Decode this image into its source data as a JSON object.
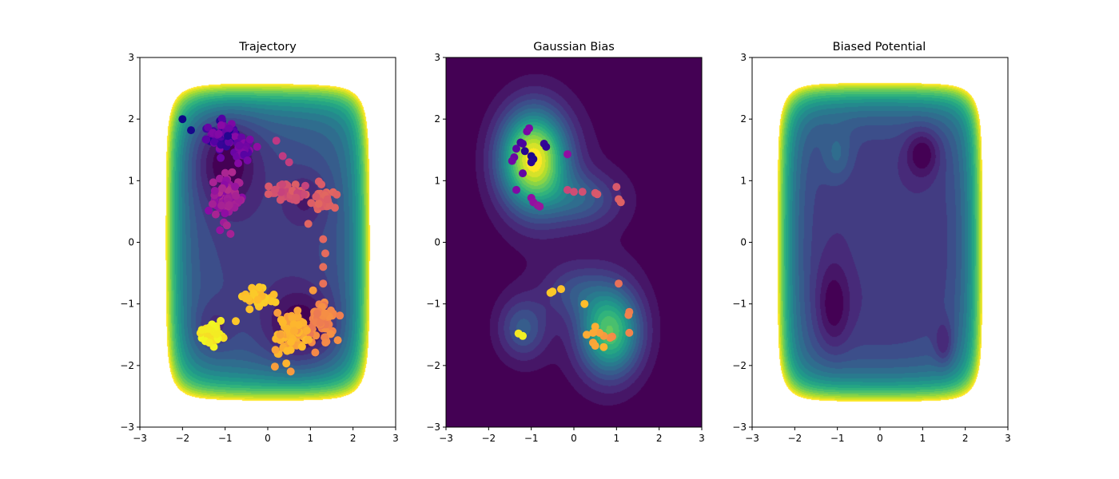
{
  "chart_data": [
    {
      "type": "contour-scatter",
      "title": "Trajectory",
      "xlim": [
        -3,
        3
      ],
      "ylim": [
        -3,
        3
      ],
      "xticks": [
        "−3",
        "−2",
        "−1",
        "0",
        "1",
        "2",
        "3"
      ],
      "yticks": [
        "−3",
        "−2",
        "−1",
        "0",
        "1",
        "2",
        "3"
      ],
      "colormap_background": "viridis",
      "colormap_points": "plasma",
      "field": "potential",
      "clusters": [
        {
          "cx": -1.05,
          "cy": 1.72,
          "sx": 0.28,
          "sy": 0.22,
          "n": 70,
          "tmin": 0.02,
          "tmax": 0.28
        },
        {
          "cx": -0.55,
          "cy": 1.5,
          "sx": 0.15,
          "sy": 0.22,
          "n": 25,
          "tmin": 0.15,
          "tmax": 0.3
        },
        {
          "cx": -0.95,
          "cy": 0.7,
          "sx": 0.28,
          "sy": 0.28,
          "n": 70,
          "tmin": 0.28,
          "tmax": 0.42
        },
        {
          "cx": 0.5,
          "cy": 0.8,
          "sx": 0.35,
          "sy": 0.12,
          "n": 45,
          "tmin": 0.48,
          "tmax": 0.58
        },
        {
          "cx": 1.3,
          "cy": 0.7,
          "sx": 0.2,
          "sy": 0.15,
          "n": 30,
          "tmin": 0.56,
          "tmax": 0.62
        },
        {
          "cx": 1.25,
          "cy": -1.35,
          "sx": 0.25,
          "sy": 0.3,
          "n": 60,
          "tmin": 0.66,
          "tmax": 0.74
        },
        {
          "cx": 0.55,
          "cy": -1.45,
          "sx": 0.32,
          "sy": 0.35,
          "n": 80,
          "tmin": 0.76,
          "tmax": 0.86
        },
        {
          "cx": -0.25,
          "cy": -0.88,
          "sx": 0.28,
          "sy": 0.14,
          "n": 40,
          "tmin": 0.84,
          "tmax": 0.9
        },
        {
          "cx": -1.35,
          "cy": -1.48,
          "sx": 0.2,
          "sy": 0.12,
          "n": 45,
          "tmin": 0.92,
          "tmax": 1.0
        }
      ],
      "points": [
        {
          "x": -2.0,
          "y": 2.0,
          "t": 0.0
        },
        {
          "x": -1.8,
          "y": 1.82,
          "t": 0.02
        },
        {
          "x": -0.25,
          "y": 1.55,
          "t": 0.3
        },
        {
          "x": 0.2,
          "y": 1.65,
          "t": 0.45
        },
        {
          "x": 0.35,
          "y": 1.4,
          "t": 0.46
        },
        {
          "x": 0.5,
          "y": 1.3,
          "t": 0.47
        },
        {
          "x": 0.95,
          "y": 0.3,
          "t": 0.6
        },
        {
          "x": 1.3,
          "y": 0.05,
          "t": 0.61
        },
        {
          "x": 1.35,
          "y": -0.18,
          "t": 0.62
        },
        {
          "x": 1.3,
          "y": -0.4,
          "t": 0.63
        },
        {
          "x": 1.3,
          "y": -0.67,
          "t": 0.64
        },
        {
          "x": -0.75,
          "y": -1.28,
          "t": 0.88
        }
      ]
    },
    {
      "type": "contour-scatter",
      "title": "Gaussian Bias",
      "xlim": [
        -3,
        3
      ],
      "ylim": [
        -3,
        3
      ],
      "xticks": [
        "−3",
        "−2",
        "−1",
        "0",
        "1",
        "2",
        "3"
      ],
      "yticks": [
        "−3",
        "−2",
        "−1",
        "0",
        "1",
        "2",
        "3"
      ],
      "colormap_background": "viridis",
      "colormap_points": "plasma",
      "field": "bias",
      "points": [
        {
          "x": -1.25,
          "y": 1.62,
          "t": 0.1
        },
        {
          "x": -1.2,
          "y": 1.6,
          "t": 0.12
        },
        {
          "x": -1.35,
          "y": 1.52,
          "t": 0.16
        },
        {
          "x": -1.4,
          "y": 1.38,
          "t": 0.2
        },
        {
          "x": -1.45,
          "y": 1.32,
          "t": 0.22
        },
        {
          "x": -1.15,
          "y": 1.48,
          "t": 0.05
        },
        {
          "x": -1.0,
          "y": 1.4,
          "t": 0.03
        },
        {
          "x": -0.95,
          "y": 1.35,
          "t": 0.04
        },
        {
          "x": -1.0,
          "y": 1.3,
          "t": 0.06
        },
        {
          "x": -0.7,
          "y": 1.6,
          "t": 0.08
        },
        {
          "x": -0.65,
          "y": 1.55,
          "t": 0.07
        },
        {
          "x": -1.1,
          "y": 1.8,
          "t": 0.24
        },
        {
          "x": -1.05,
          "y": 1.85,
          "t": 0.25
        },
        {
          "x": -0.15,
          "y": 1.43,
          "t": 0.3
        },
        {
          "x": -1.2,
          "y": 1.12,
          "t": 0.18
        },
        {
          "x": -1.35,
          "y": 0.85,
          "t": 0.26
        },
        {
          "x": -1.0,
          "y": 0.72,
          "t": 0.3
        },
        {
          "x": -0.95,
          "y": 0.65,
          "t": 0.31
        },
        {
          "x": -0.85,
          "y": 0.6,
          "t": 0.32
        },
        {
          "x": -0.8,
          "y": 0.58,
          "t": 0.33
        },
        {
          "x": -0.15,
          "y": 0.85,
          "t": 0.5
        },
        {
          "x": 0.0,
          "y": 0.82,
          "t": 0.52
        },
        {
          "x": 0.2,
          "y": 0.82,
          "t": 0.53
        },
        {
          "x": 0.5,
          "y": 0.8,
          "t": 0.55
        },
        {
          "x": 0.55,
          "y": 0.78,
          "t": 0.56
        },
        {
          "x": 1.0,
          "y": 0.9,
          "t": 0.56
        },
        {
          "x": 1.05,
          "y": 0.7,
          "t": 0.58
        },
        {
          "x": 1.1,
          "y": 0.65,
          "t": 0.59
        },
        {
          "x": 1.05,
          "y": -0.67,
          "t": 0.64
        },
        {
          "x": 1.3,
          "y": -1.13,
          "t": 0.68
        },
        {
          "x": 1.28,
          "y": -1.18,
          "t": 0.69
        },
        {
          "x": 1.3,
          "y": -1.47,
          "t": 0.7
        },
        {
          "x": 0.9,
          "y": -1.53,
          "t": 0.72
        },
        {
          "x": 0.85,
          "y": -1.55,
          "t": 0.73
        },
        {
          "x": 0.7,
          "y": -1.52,
          "t": 0.76
        },
        {
          "x": 0.6,
          "y": -1.47,
          "t": 0.78
        },
        {
          "x": 0.45,
          "y": -1.47,
          "t": 0.8
        },
        {
          "x": 0.5,
          "y": -1.37,
          "t": 0.82
        },
        {
          "x": 0.3,
          "y": -1.5,
          "t": 0.81
        },
        {
          "x": 0.45,
          "y": -1.63,
          "t": 0.79
        },
        {
          "x": 0.5,
          "y": -1.68,
          "t": 0.8
        },
        {
          "x": 0.7,
          "y": -1.7,
          "t": 0.83
        },
        {
          "x": 0.25,
          "y": -1.0,
          "t": 0.86
        },
        {
          "x": -0.3,
          "y": -0.76,
          "t": 0.87
        },
        {
          "x": -0.55,
          "y": -0.82,
          "t": 0.88
        },
        {
          "x": -0.5,
          "y": -0.8,
          "t": 0.885
        },
        {
          "x": -1.3,
          "y": -1.48,
          "t": 0.96
        },
        {
          "x": -1.2,
          "y": -1.52,
          "t": 0.98
        }
      ]
    },
    {
      "type": "contour",
      "title": "Biased Potential",
      "xlim": [
        -3,
        3
      ],
      "ylim": [
        -3,
        3
      ],
      "xticks": [
        "−3",
        "−2",
        "−1",
        "0",
        "1",
        "2",
        "3"
      ],
      "yticks": [
        "−3",
        "−2",
        "−1",
        "0",
        "1",
        "2",
        "3"
      ],
      "colormap_background": "viridis",
      "field": "biased"
    }
  ]
}
